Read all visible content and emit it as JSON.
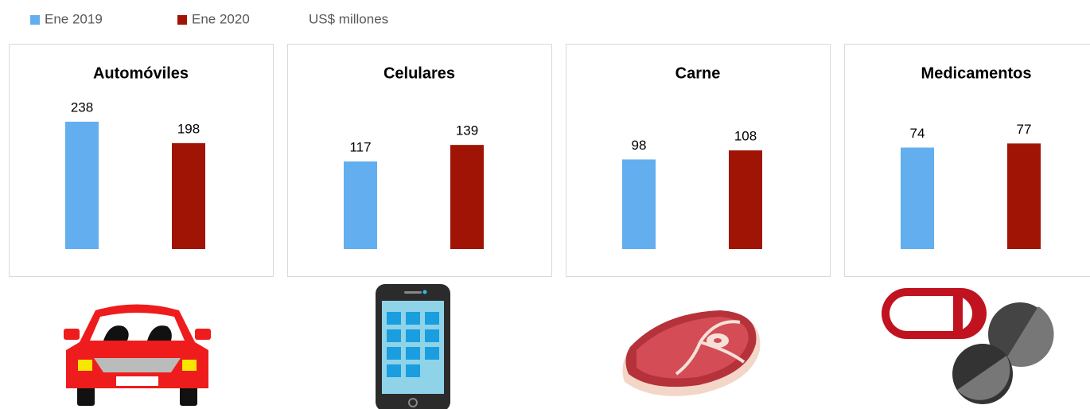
{
  "legend_note": "US$ millones",
  "chart_data": [
    {
      "type": "bar",
      "title": "Automóviles",
      "ylim": [
        0,
        287
      ],
      "series": [
        {
          "name": "Ene 2019",
          "color": "#63aeef",
          "values": [
            238
          ]
        },
        {
          "name": "Ene 2020",
          "color": "#a01405",
          "values": [
            198
          ]
        }
      ]
    },
    {
      "type": "bar",
      "title": "Celulares",
      "ylim": [
        0,
        205
      ],
      "series": [
        {
          "name": "Ene 2019",
          "color": "#63aeef",
          "values": [
            117
          ]
        },
        {
          "name": "Ene 2020",
          "color": "#a01405",
          "values": [
            139
          ]
        }
      ]
    },
    {
      "type": "bar",
      "title": "Carne",
      "ylim": [
        0,
        168
      ],
      "series": [
        {
          "name": "Ene 2019",
          "color": "#63aeef",
          "values": [
            98
          ]
        },
        {
          "name": "Ene 2020",
          "color": "#a01405",
          "values": [
            108
          ]
        }
      ]
    },
    {
      "type": "bar",
      "title": "Medicamentos",
      "ylim": [
        0,
        112
      ],
      "series": [
        {
          "name": "Ene 2019",
          "color": "#63aeef",
          "values": [
            74
          ]
        },
        {
          "name": "Ene 2020",
          "color": "#a01405",
          "values": [
            77
          ]
        }
      ]
    }
  ]
}
